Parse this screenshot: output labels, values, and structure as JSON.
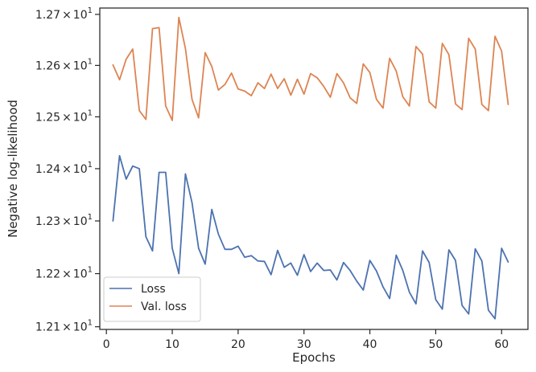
{
  "chart_data": {
    "type": "line",
    "title": "",
    "xlabel": "Epochs",
    "ylabel": "Negative log-likelihood",
    "xlim": [
      -1,
      64
    ],
    "ylim": [
      12.095,
      12.7125
    ],
    "y_scale": "log",
    "grid": false,
    "legend_position": "lower-left",
    "x_ticks": [
      {
        "value": 0,
        "label": "0"
      },
      {
        "value": 10,
        "label": "10"
      },
      {
        "value": 20,
        "label": "20"
      },
      {
        "value": 30,
        "label": "30"
      },
      {
        "value": 40,
        "label": "40"
      },
      {
        "value": 50,
        "label": "50"
      },
      {
        "value": 60,
        "label": "60"
      }
    ],
    "y_ticks": [
      {
        "value": 12.1,
        "mantissa": "1.21",
        "base": "10",
        "exponent": "1"
      },
      {
        "value": 12.2,
        "mantissa": "1.22",
        "base": "10",
        "exponent": "1"
      },
      {
        "value": 12.3,
        "mantissa": "1.23",
        "base": "10",
        "exponent": "1"
      },
      {
        "value": 12.4,
        "mantissa": "1.24",
        "base": "10",
        "exponent": "1"
      },
      {
        "value": 12.5,
        "mantissa": "1.25",
        "base": "10",
        "exponent": "1"
      },
      {
        "value": 12.6,
        "mantissa": "1.26",
        "base": "10",
        "exponent": "1"
      },
      {
        "value": 12.7,
        "mantissa": "1.27",
        "base": "10",
        "exponent": "1"
      }
    ],
    "series": [
      {
        "name": "Loss",
        "color": "#4c72b0",
        "x": [
          1,
          2,
          3,
          4,
          5,
          6,
          7,
          8,
          9,
          10,
          11,
          12,
          13,
          14,
          15,
          16,
          17,
          18,
          19,
          20,
          21,
          22,
          23,
          24,
          25,
          26,
          27,
          28,
          29,
          30,
          31,
          32,
          33,
          34,
          35,
          36,
          37,
          38,
          39,
          40,
          41,
          42,
          43,
          44,
          45,
          46,
          47,
          48,
          49,
          50,
          51,
          52,
          53,
          54,
          55,
          56,
          57,
          58,
          59,
          60,
          61
        ],
        "y": [
          12.3,
          12.425,
          12.38,
          12.405,
          12.4,
          12.27,
          12.243,
          12.393,
          12.393,
          12.248,
          12.2,
          12.39,
          12.335,
          12.248,
          12.218,
          12.322,
          12.275,
          12.246,
          12.246,
          12.252,
          12.231,
          12.234,
          12.224,
          12.223,
          12.198,
          12.244,
          12.212,
          12.22,
          12.197,
          12.236,
          12.204,
          12.22,
          12.206,
          12.207,
          12.188,
          12.221,
          12.206,
          12.186,
          12.169,
          12.225,
          12.205,
          12.175,
          12.153,
          12.235,
          12.206,
          12.165,
          12.143,
          12.243,
          12.221,
          12.151,
          12.133,
          12.245,
          12.225,
          12.14,
          12.124,
          12.247,
          12.224,
          12.131,
          12.115,
          12.248,
          12.222
        ]
      },
      {
        "name": "Val. loss",
        "color": "#dd8452",
        "x": [
          1,
          2,
          3,
          4,
          5,
          6,
          7,
          8,
          9,
          10,
          11,
          12,
          13,
          14,
          15,
          16,
          17,
          18,
          19,
          20,
          21,
          22,
          23,
          24,
          25,
          26,
          27,
          28,
          29,
          30,
          31,
          32,
          33,
          34,
          35,
          36,
          37,
          38,
          39,
          40,
          41,
          42,
          43,
          44,
          45,
          46,
          47,
          48,
          49,
          50,
          51,
          52,
          53,
          54,
          55,
          56,
          57,
          58,
          59,
          60,
          61
        ],
        "y": [
          12.601,
          12.572,
          12.612,
          12.632,
          12.512,
          12.495,
          12.672,
          12.674,
          12.521,
          12.493,
          12.694,
          12.633,
          12.534,
          12.498,
          12.625,
          12.598,
          12.552,
          12.563,
          12.585,
          12.554,
          12.55,
          12.541,
          12.566,
          12.555,
          12.583,
          12.555,
          12.574,
          12.542,
          12.573,
          12.544,
          12.584,
          12.576,
          12.559,
          12.538,
          12.584,
          12.566,
          12.537,
          12.526,
          12.603,
          12.586,
          12.534,
          12.517,
          12.614,
          12.589,
          12.539,
          12.521,
          12.637,
          12.622,
          12.529,
          12.517,
          12.643,
          12.621,
          12.525,
          12.514,
          12.653,
          12.632,
          12.524,
          12.512,
          12.657,
          12.628,
          12.524
        ]
      }
    ]
  }
}
